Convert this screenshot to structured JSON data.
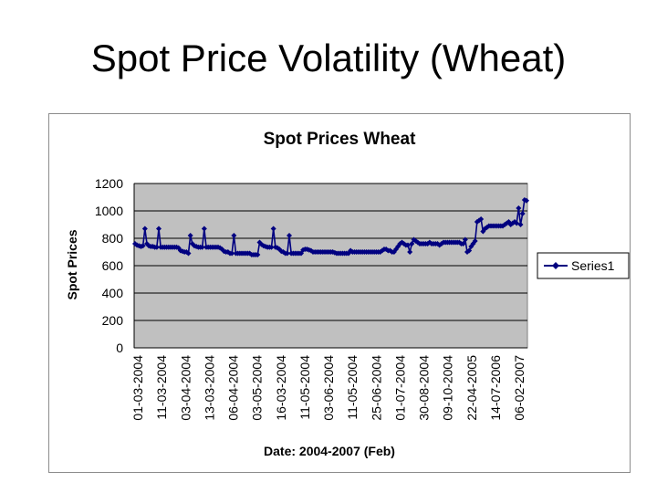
{
  "slide": {
    "title": "Spot Price Volatility (Wheat)"
  },
  "colors": {
    "plot_bg": "#c0c0c0",
    "series": "#000080",
    "gridline": "#000000"
  },
  "chart_data": {
    "type": "line",
    "title": "Spot Prices Wheat",
    "xlabel": "Date: 2004-2007 (Feb)",
    "ylabel": "Spot Prices",
    "ylim": [
      0,
      1200
    ],
    "yticks": [
      0,
      200,
      400,
      600,
      800,
      1000,
      1200
    ],
    "xtick_labels": [
      "01-03-2004",
      "11-03-2004",
      "03-04-2004",
      "13-03-2004",
      "06-04-2004",
      "03-05-2004",
      "16-03-2004",
      "11-05-2004",
      "03-06-2004",
      "11-05-2004",
      "25-06-2004",
      "01-07-2004",
      "30-08-2004",
      "09-10-2004",
      "22-04-2005",
      "14-07-2006",
      "06-02-2007"
    ],
    "grid": true,
    "legend": {
      "position": "right",
      "entries": [
        "Series1"
      ]
    },
    "series": [
      {
        "name": "Series1",
        "values": [
          760,
          750,
          745,
          740,
          745,
          870,
          760,
          745,
          740,
          740,
          735,
          735,
          870,
          735,
          735,
          735,
          735,
          735,
          735,
          735,
          735,
          735,
          730,
          710,
          705,
          700,
          700,
          690,
          820,
          760,
          745,
          740,
          735,
          735,
          735,
          870,
          735,
          735,
          735,
          735,
          735,
          735,
          735,
          730,
          720,
          705,
          700,
          700,
          690,
          690,
          820,
          690,
          690,
          690,
          690,
          690,
          690,
          690,
          690,
          680,
          680,
          680,
          680,
          770,
          755,
          745,
          740,
          735,
          735,
          735,
          870,
          735,
          730,
          720,
          705,
          700,
          690,
          690,
          820,
          690,
          690,
          690,
          690,
          690,
          690,
          715,
          720,
          720,
          715,
          710,
          700,
          700,
          700,
          700,
          700,
          700,
          700,
          700,
          700,
          700,
          700,
          695,
          690,
          690,
          690,
          690,
          690,
          690,
          690,
          710,
          700,
          700,
          700,
          700,
          700,
          700,
          700,
          700,
          700,
          700,
          700,
          700,
          700,
          700,
          700,
          710,
          720,
          720,
          710,
          710,
          700,
          700,
          720,
          740,
          760,
          770,
          760,
          750,
          750,
          700,
          760,
          790,
          780,
          770,
          760,
          760,
          760,
          760,
          760,
          770,
          760,
          760,
          760,
          760,
          750,
          760,
          770,
          770,
          770,
          770,
          770,
          770,
          770,
          770,
          770,
          760,
          760,
          790,
          700,
          710,
          740,
          760,
          780,
          920,
          930,
          940,
          850,
          870,
          880,
          890,
          890,
          890,
          890,
          890,
          890,
          890,
          890,
          900,
          910,
          920,
          900,
          910,
          920,
          910,
          1020,
          900,
          980,
          1080,
          1075
        ]
      }
    ]
  }
}
